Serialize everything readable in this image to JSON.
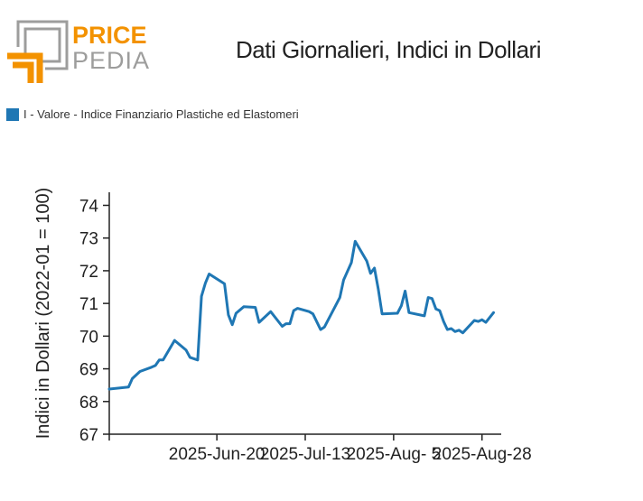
{
  "logo": {
    "line1": "PRICE",
    "line2": "PEDIA",
    "colors": {
      "orange": "#f39200",
      "gray": "#9d9d9c"
    }
  },
  "chart_data": {
    "type": "line",
    "title": "Dati Giornalieri, Indici in Dollari",
    "ylabel": "Indici in Dollari (2022-01 = 100)",
    "xlabel": "",
    "ylim": [
      67,
      74.4
    ],
    "yticks": [
      67,
      68,
      69,
      70,
      71,
      72,
      73,
      74
    ],
    "x_range": [
      "2025-05-23",
      "2025-09-02"
    ],
    "x_ticks": [
      {
        "date": "2025-05-23",
        "label": ""
      },
      {
        "date": "2025-06-20",
        "label": "2025-Jun-20"
      },
      {
        "date": "2025-07-13",
        "label": "2025-Jul-13"
      },
      {
        "date": "2025-08-05",
        "label": "2025-Aug- 5"
      },
      {
        "date": "2025-08-28",
        "label": "2025-Aug-28"
      }
    ],
    "legend_position": "top-left",
    "grid": false,
    "series": [
      {
        "name": "I - Valore - Indice Finanziario Plastiche ed Elastomeri",
        "color": "#1f77b4",
        "points": [
          [
            "2025-05-23",
            68.38
          ],
          [
            "2025-05-28",
            68.44
          ],
          [
            "2025-05-29",
            68.7
          ],
          [
            "2025-05-31",
            68.92
          ],
          [
            "2025-06-03",
            69.05
          ],
          [
            "2025-06-04",
            69.1
          ],
          [
            "2025-06-05",
            69.27
          ],
          [
            "2025-06-06",
            69.27
          ],
          [
            "2025-06-09",
            69.87
          ],
          [
            "2025-06-12",
            69.57
          ],
          [
            "2025-06-13",
            69.35
          ],
          [
            "2025-06-15",
            69.27
          ],
          [
            "2025-06-16",
            71.22
          ],
          [
            "2025-06-17",
            71.62
          ],
          [
            "2025-06-18",
            71.9
          ],
          [
            "2025-06-22",
            71.6
          ],
          [
            "2025-06-23",
            70.65
          ],
          [
            "2025-06-24",
            70.35
          ],
          [
            "2025-06-25",
            70.7
          ],
          [
            "2025-06-27",
            70.9
          ],
          [
            "2025-06-30",
            70.88
          ],
          [
            "2025-07-01",
            70.42
          ],
          [
            "2025-07-04",
            70.75
          ],
          [
            "2025-07-07",
            70.3
          ],
          [
            "2025-07-08",
            70.38
          ],
          [
            "2025-07-09",
            70.38
          ],
          [
            "2025-07-10",
            70.78
          ],
          [
            "2025-07-11",
            70.85
          ],
          [
            "2025-07-14",
            70.75
          ],
          [
            "2025-07-15",
            70.68
          ],
          [
            "2025-07-17",
            70.2
          ],
          [
            "2025-07-18",
            70.28
          ],
          [
            "2025-07-22",
            71.18
          ],
          [
            "2025-07-23",
            71.72
          ],
          [
            "2025-07-25",
            72.25
          ],
          [
            "2025-07-26",
            72.9
          ],
          [
            "2025-07-29",
            72.3
          ],
          [
            "2025-07-30",
            71.92
          ],
          [
            "2025-07-31",
            72.08
          ],
          [
            "2025-08-01",
            71.45
          ],
          [
            "2025-08-02",
            70.68
          ],
          [
            "2025-08-06",
            70.7
          ],
          [
            "2025-08-07",
            70.93
          ],
          [
            "2025-08-08",
            71.38
          ],
          [
            "2025-08-09",
            70.72
          ],
          [
            "2025-08-13",
            70.62
          ],
          [
            "2025-08-14",
            71.18
          ],
          [
            "2025-08-15",
            71.15
          ],
          [
            "2025-08-16",
            70.83
          ],
          [
            "2025-08-17",
            70.78
          ],
          [
            "2025-08-18",
            70.45
          ],
          [
            "2025-08-19",
            70.2
          ],
          [
            "2025-08-20",
            70.23
          ],
          [
            "2025-08-21",
            70.14
          ],
          [
            "2025-08-22",
            70.18
          ],
          [
            "2025-08-23",
            70.1
          ],
          [
            "2025-08-26",
            70.48
          ],
          [
            "2025-08-27",
            70.45
          ],
          [
            "2025-08-28",
            70.5
          ],
          [
            "2025-08-29",
            70.42
          ],
          [
            "2025-08-31",
            70.72
          ]
        ]
      }
    ]
  }
}
